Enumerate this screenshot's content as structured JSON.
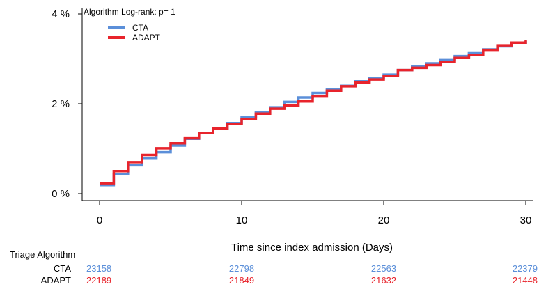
{
  "chart_data": {
    "type": "line",
    "step": true,
    "xlabel": "Time since index admission (Days)",
    "ylabel": "",
    "xlim": [
      0,
      30
    ],
    "ylim": [
      0,
      4
    ],
    "xticks": [
      0,
      10,
      20,
      30
    ],
    "xtick_labels": [
      "0",
      "10",
      "20",
      "30"
    ],
    "yticks": [
      0,
      2,
      4
    ],
    "ytick_labels": [
      "0 %",
      "2 %",
      "4 %"
    ],
    "grid": false,
    "legend": {
      "title": "Algorithm  Log-rank: p= 1",
      "placement": "top-left"
    },
    "series": [
      {
        "name": "CTA",
        "color": "#5b8fd9",
        "x": [
          0,
          1,
          2,
          3,
          4,
          5,
          6,
          7,
          8,
          9,
          10,
          11,
          12,
          13,
          14,
          15,
          16,
          17,
          18,
          19,
          20,
          21,
          22,
          23,
          24,
          25,
          26,
          27,
          28,
          29,
          30
        ],
        "y": [
          0.19,
          0.43,
          0.63,
          0.78,
          0.92,
          1.07,
          1.22,
          1.35,
          1.45,
          1.57,
          1.7,
          1.81,
          1.92,
          2.04,
          2.14,
          2.24,
          2.32,
          2.4,
          2.5,
          2.57,
          2.65,
          2.75,
          2.83,
          2.9,
          2.97,
          3.06,
          3.14,
          3.21,
          3.28,
          3.36,
          3.4
        ]
      },
      {
        "name": "ADAPT",
        "color": "#e8242c",
        "x": [
          0,
          1,
          2,
          3,
          4,
          5,
          6,
          7,
          8,
          9,
          10,
          11,
          12,
          13,
          14,
          15,
          16,
          17,
          18,
          19,
          20,
          21,
          22,
          23,
          24,
          25,
          26,
          27,
          28,
          29,
          30
        ],
        "y": [
          0.23,
          0.5,
          0.7,
          0.86,
          1.01,
          1.12,
          1.23,
          1.35,
          1.45,
          1.55,
          1.66,
          1.78,
          1.89,
          1.96,
          2.05,
          2.16,
          2.29,
          2.39,
          2.47,
          2.54,
          2.62,
          2.75,
          2.8,
          2.86,
          2.93,
          3.02,
          3.09,
          3.2,
          3.3,
          3.36,
          3.41
        ]
      }
    ]
  },
  "risk_table": {
    "title": "Triage Algorithm",
    "times": [
      0,
      10,
      20,
      30
    ],
    "rows": [
      {
        "label": "CTA",
        "color": "#5b8fd9",
        "values": [
          "23158",
          "22798",
          "22563",
          "22379"
        ]
      },
      {
        "label": "ADAPT",
        "color": "#e8242c",
        "values": [
          "22189",
          "21849",
          "21632",
          "21448"
        ]
      }
    ]
  }
}
